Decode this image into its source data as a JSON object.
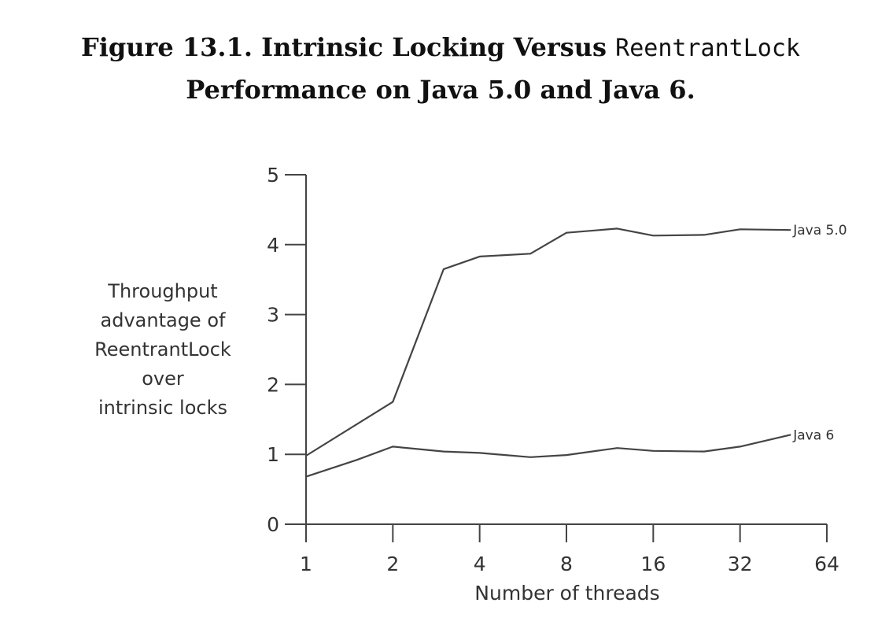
{
  "figure": {
    "caption_prefix": "Figure 13.1. Intrinsic Locking Versus",
    "caption_code": "ReentrantLock",
    "caption_line2": "Performance on Java 5.0 and Java 6."
  },
  "colors": {
    "line": "#444444",
    "text": "#333333",
    "caption": "#111111"
  },
  "chart_data": {
    "type": "line",
    "title": "Figure 13.1. Intrinsic Locking Versus ReentrantLock Performance on Java 5.0 and Java 6.",
    "xlabel": "Number of threads",
    "ylabel_lines": [
      "Throughput",
      "advantage of",
      "ReentrantLock",
      "over",
      "intrinsic locks"
    ],
    "x_scale": "log2",
    "xlim": [
      1,
      64
    ],
    "ylim": [
      0,
      5
    ],
    "x_ticks": [
      1,
      2,
      4,
      8,
      16,
      32,
      64
    ],
    "y_ticks": [
      0,
      1,
      2,
      3,
      4,
      5
    ],
    "grid": false,
    "legend": "inline labels at right end of lines",
    "series": [
      {
        "name": "Java 5.0",
        "x": [
          1,
          2,
          3,
          4,
          6,
          8,
          12,
          16,
          24,
          32,
          48
        ],
        "y": [
          0.98,
          1.75,
          3.65,
          3.83,
          3.87,
          4.17,
          4.23,
          4.13,
          4.14,
          4.22,
          4.21
        ]
      },
      {
        "name": "Java 6",
        "x": [
          1,
          1.5,
          2,
          3,
          4,
          6,
          8,
          12,
          16,
          24,
          32,
          48
        ],
        "y": [
          0.68,
          0.92,
          1.11,
          1.04,
          1.02,
          0.96,
          0.99,
          1.09,
          1.05,
          1.04,
          1.11,
          1.28
        ]
      }
    ]
  }
}
